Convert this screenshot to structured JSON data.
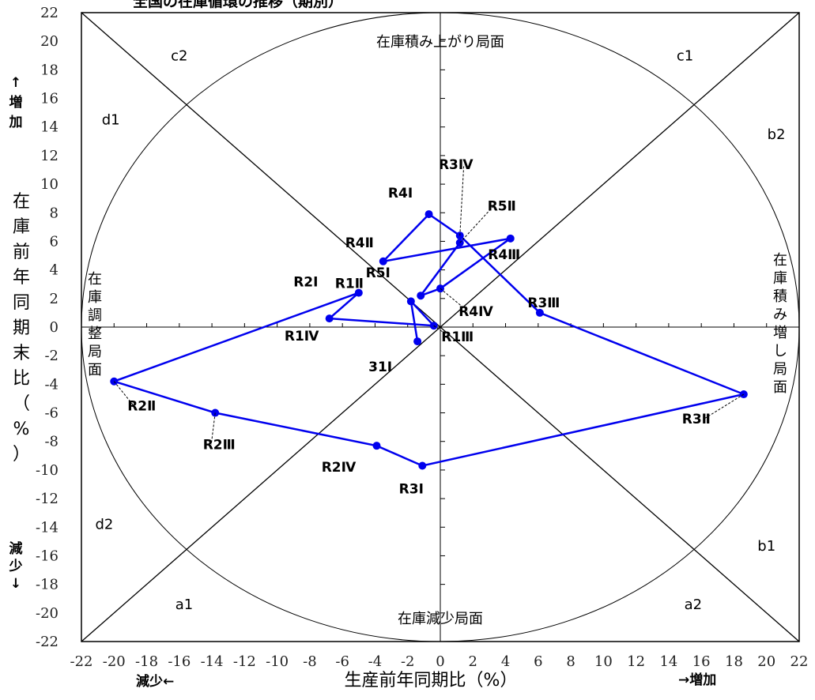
{
  "chart_data": {
    "type": "scatter",
    "title": "全国の在庫循環の推移（期別）",
    "xlabel": "生産前年同期比（%）",
    "ylabel": "在庫前年同期末比（%）",
    "x_direction_left": "減少←",
    "x_direction_right": "→増加",
    "y_direction_up": "↑増加",
    "y_direction_down": "減少↓",
    "xlim": [
      -22,
      22
    ],
    "ylim": [
      -22,
      22
    ],
    "x_ticks": [
      -22,
      -20,
      -18,
      -16,
      -14,
      -12,
      -10,
      -8,
      -6,
      -4,
      -2,
      0,
      2,
      4,
      6,
      8,
      10,
      12,
      14,
      16,
      18,
      20,
      22
    ],
    "y_ticks": [
      22,
      20,
      18,
      16,
      14,
      12,
      10,
      8,
      6,
      4,
      2,
      0,
      -2,
      -4,
      -6,
      -8,
      -10,
      -12,
      -14,
      -16,
      -18,
      -20,
      -22
    ],
    "series": [
      {
        "color": "#0000ee",
        "points": [
          {
            "label": "31Ⅰ",
            "x": -1.4,
            "y": -1.0
          },
          {
            "label": "R1Ⅱ",
            "x": -1.8,
            "y": 1.8
          },
          {
            "label": "R1Ⅲ",
            "x": -0.4,
            "y": 0.1
          },
          {
            "label": "R1Ⅳ",
            "x": -6.8,
            "y": 0.6
          },
          {
            "label": "R2Ⅰ",
            "x": -5.0,
            "y": 2.4
          },
          {
            "label": "R2Ⅱ",
            "x": -20.0,
            "y": -3.8
          },
          {
            "label": "R2Ⅲ",
            "x": -13.8,
            "y": -6.0
          },
          {
            "label": "R2Ⅳ",
            "x": -3.9,
            "y": -8.3
          },
          {
            "label": "R3Ⅰ",
            "x": -1.1,
            "y": -9.7
          },
          {
            "label": "R3Ⅱ",
            "x": 18.6,
            "y": -4.7
          },
          {
            "label": "R3Ⅲ",
            "x": 6.1,
            "y": 1.0
          },
          {
            "label": "R3Ⅳ",
            "x": 1.2,
            "y": 6.4
          },
          {
            "label": "R4Ⅰ",
            "x": -0.7,
            "y": 7.9
          },
          {
            "label": "R4Ⅱ",
            "x": -3.5,
            "y": 4.6
          },
          {
            "label": "R4Ⅲ",
            "x": 4.3,
            "y": 6.2
          },
          {
            "label": "R4Ⅳ",
            "x": 0.0,
            "y": 2.7
          },
          {
            "label": "R5Ⅰ",
            "x": -1.2,
            "y": 2.2
          },
          {
            "label": "R5Ⅱ",
            "x": 1.2,
            "y": 5.9
          }
        ]
      }
    ],
    "region_labels": [
      {
        "text": "c2",
        "x": -16,
        "y": 19
      },
      {
        "text": "c1",
        "x": 15,
        "y": 19
      },
      {
        "text": "d1",
        "x": -20.2,
        "y": 14.5
      },
      {
        "text": "b2",
        "x": 20.6,
        "y": 13.5
      },
      {
        "text": "d2",
        "x": -20.6,
        "y": -13.8
      },
      {
        "text": "b1",
        "x": 20,
        "y": -15.3
      },
      {
        "text": "a1",
        "x": -15.7,
        "y": -19.4
      },
      {
        "text": "a2",
        "x": 15.5,
        "y": -19.4
      }
    ],
    "phase_labels": {
      "top": "在庫積み上がり局面",
      "bottom": "在庫減少局面",
      "left": "在庫調整局面",
      "right": "在庫積み増し局面"
    },
    "grid": false
  }
}
